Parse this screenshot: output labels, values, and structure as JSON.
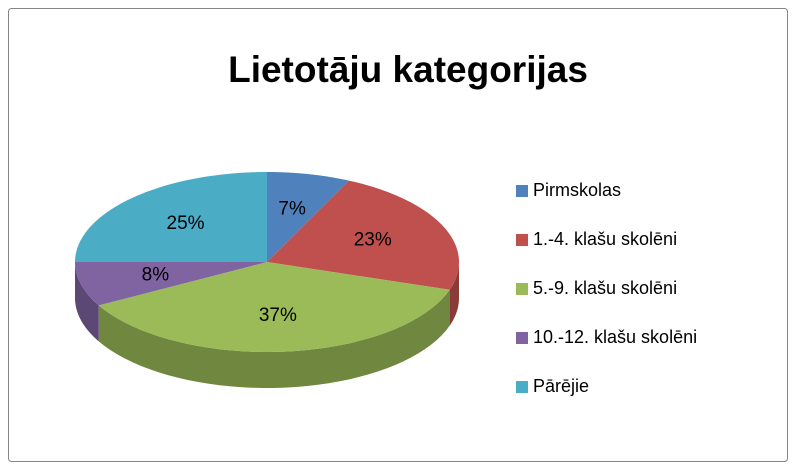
{
  "chart_data": {
    "type": "pie3d",
    "title": "Lietotāju kategorijas",
    "categories": [
      "Pirmskolas",
      "1.-4. klašu skolēni",
      "5.-9. klašu skolēni",
      "10.-12. klašu skolēni",
      "Pārējie"
    ],
    "values": [
      7,
      23,
      37,
      8,
      25
    ],
    "value_labels": [
      "7%",
      "23%",
      "37%",
      "8%",
      "25%"
    ],
    "colors": [
      "#4f81bd",
      "#c0504d",
      "#9bbb59",
      "#8064a2",
      "#4bacc6"
    ],
    "legend": "right"
  }
}
